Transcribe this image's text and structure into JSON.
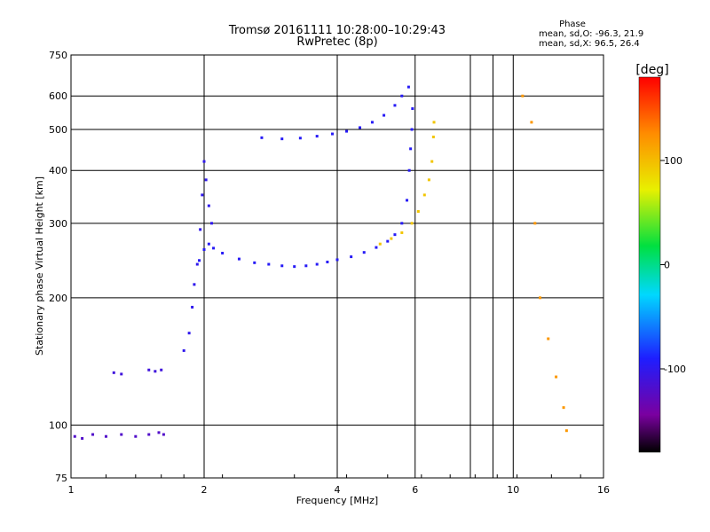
{
  "chart_data": {
    "type": "scatter",
    "title": "Tromsø 20161111 10:28:00–10:29:43",
    "subtitle": "RwPretec (8p)",
    "xlabel": "Frequency [MHz]",
    "ylabel": "Stationary phase Virtual Height [km]",
    "x_scale": "log",
    "y_scale": "log",
    "xlim": [
      1,
      16
    ],
    "ylim": [
      75,
      750
    ],
    "x_ticks": [
      1,
      2,
      4,
      6,
      10,
      16
    ],
    "x_tick_labels": [
      "1",
      "2",
      "4",
      "6",
      "10",
      "16"
    ],
    "y_ticks": [
      75,
      100,
      200,
      300,
      400,
      500,
      600,
      750
    ],
    "y_tick_labels": [
      "75",
      "100",
      "200",
      "300",
      "400",
      "500",
      "600",
      "750"
    ],
    "grid": true,
    "colorbar": {
      "label": "[deg]",
      "range": [
        -180,
        180
      ],
      "ticks": [
        100,
        0,
        -100
      ],
      "tick_labels": [
        "100",
        "0",
        "-100"
      ]
    },
    "phase_stats": {
      "heading": "Phase",
      "o_text": "mean, sd,O: -96.3, 21.9",
      "x_text": "mean, sd,X:  96.5, 26.4"
    },
    "traces": [
      {
        "name": "",
        "phase": -120,
        "points": [
          [
            1.02,
            94
          ],
          [
            1.06,
            93
          ],
          [
            1.12,
            95
          ],
          [
            1.2,
            94
          ],
          [
            1.3,
            95
          ],
          [
            1.4,
            94
          ],
          [
            1.5,
            95
          ],
          [
            1.58,
            96
          ],
          [
            1.62,
            95
          ]
        ]
      },
      {
        "name": "",
        "phase": -110,
        "points": [
          [
            1.25,
            133
          ],
          [
            1.3,
            132
          ],
          [
            1.5,
            135
          ],
          [
            1.55,
            134
          ],
          [
            1.6,
            135
          ]
        ]
      },
      {
        "name": "",
        "phase": -100,
        "points": [
          [
            1.8,
            150
          ],
          [
            1.85,
            165
          ],
          [
            1.88,
            190
          ],
          [
            1.9,
            215
          ],
          [
            1.93,
            240
          ],
          [
            1.96,
            290
          ],
          [
            1.98,
            350
          ],
          [
            2.0,
            420
          ],
          [
            2.02,
            380
          ],
          [
            2.05,
            330
          ],
          [
            2.08,
            300
          ]
        ]
      },
      {
        "name": "",
        "phase": -95,
        "points": [
          [
            1.95,
            245
          ],
          [
            2.0,
            260
          ],
          [
            2.05,
            268
          ],
          [
            2.1,
            262
          ],
          [
            2.2,
            255
          ],
          [
            2.4,
            247
          ],
          [
            2.6,
            242
          ],
          [
            2.8,
            240
          ],
          [
            3.0,
            238
          ],
          [
            3.2,
            237
          ],
          [
            3.4,
            238
          ],
          [
            3.6,
            240
          ],
          [
            3.8,
            243
          ],
          [
            4.0,
            246
          ],
          [
            4.3,
            250
          ],
          [
            4.6,
            256
          ],
          [
            4.9,
            263
          ],
          [
            5.2,
            272
          ],
          [
            5.4,
            282
          ],
          [
            5.6,
            300
          ],
          [
            5.75,
            340
          ],
          [
            5.82,
            400
          ],
          [
            5.86,
            450
          ],
          [
            5.9,
            500
          ],
          [
            5.92,
            560
          ]
        ]
      },
      {
        "name": "",
        "phase": -95,
        "points": [
          [
            2.7,
            478
          ],
          [
            3.0,
            475
          ],
          [
            3.3,
            477
          ],
          [
            3.6,
            482
          ],
          [
            3.9,
            488
          ],
          [
            4.2,
            495
          ],
          [
            4.5,
            505
          ],
          [
            4.8,
            520
          ],
          [
            5.1,
            540
          ],
          [
            5.4,
            570
          ],
          [
            5.6,
            600
          ],
          [
            5.8,
            630
          ]
        ]
      },
      {
        "name": "",
        "phase": 95,
        "points": [
          [
            5.0,
            268
          ],
          [
            5.3,
            276
          ],
          [
            5.6,
            285
          ],
          [
            5.9,
            300
          ],
          [
            6.1,
            320
          ],
          [
            6.3,
            350
          ],
          [
            6.45,
            380
          ],
          [
            6.55,
            420
          ],
          [
            6.6,
            480
          ],
          [
            6.62,
            520
          ]
        ]
      },
      {
        "name": "",
        "phase": 120,
        "points": [
          [
            10.5,
            600
          ],
          [
            11.0,
            520
          ],
          [
            11.2,
            300
          ],
          [
            11.5,
            200
          ],
          [
            12.0,
            160
          ],
          [
            12.5,
            130
          ],
          [
            13.0,
            110
          ],
          [
            13.2,
            97
          ]
        ]
      }
    ]
  }
}
